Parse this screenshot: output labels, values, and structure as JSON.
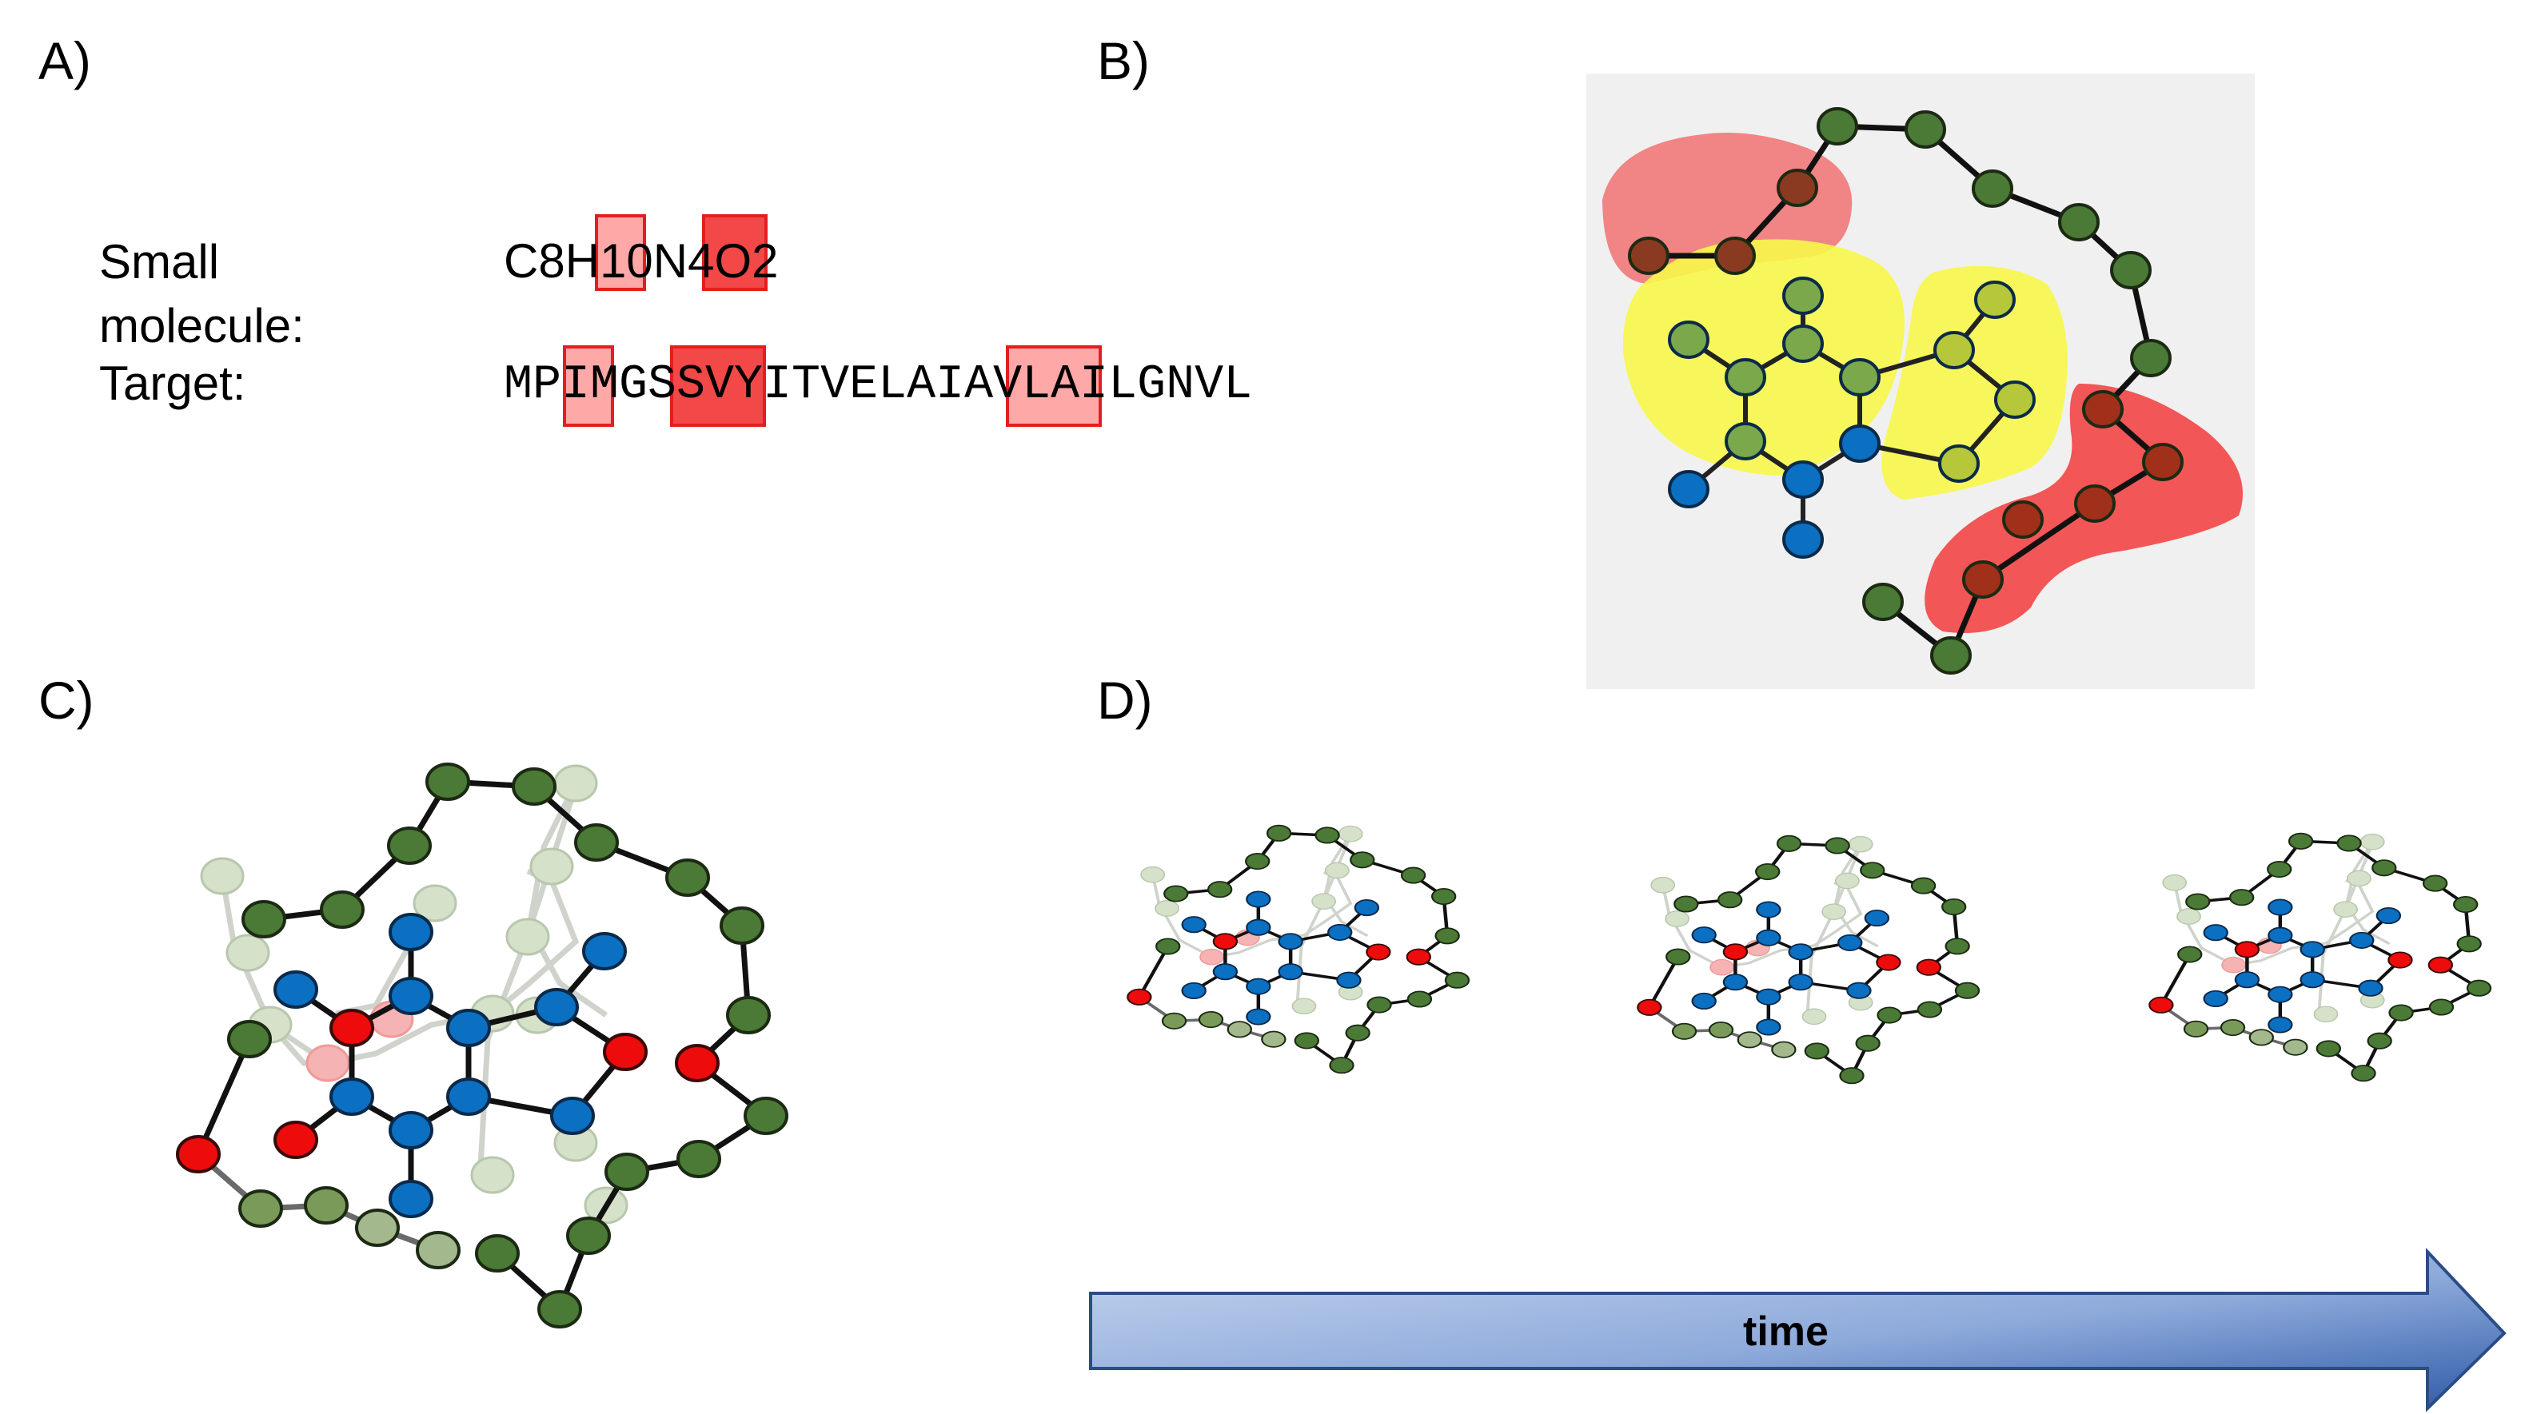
{
  "panels": {
    "a": {
      "label": "A)",
      "small_molecule_label": "Small molecule:",
      "small_molecule_label_line1": "Small",
      "small_molecule_label_line2": "molecule:",
      "formula": "C8H10N4O2",
      "target_label": "Target:",
      "target_sequence": "MPIMGSSVYITVELAIAVLAILGNVL"
    },
    "b": {
      "label": "B)"
    },
    "c": {
      "label": "C)"
    },
    "d": {
      "label": "D)",
      "arrow_label": "time"
    }
  },
  "colors": {
    "chain_node": "#4a7a35",
    "ligand_node": "#0b6fc2",
    "oxygen_node": "#ee0b0b",
    "yellow_region": "#f6f64a",
    "red_region": "#f24848",
    "arrow_light": "#c4d4ee",
    "arrow_dark": "#2f5ca8"
  }
}
